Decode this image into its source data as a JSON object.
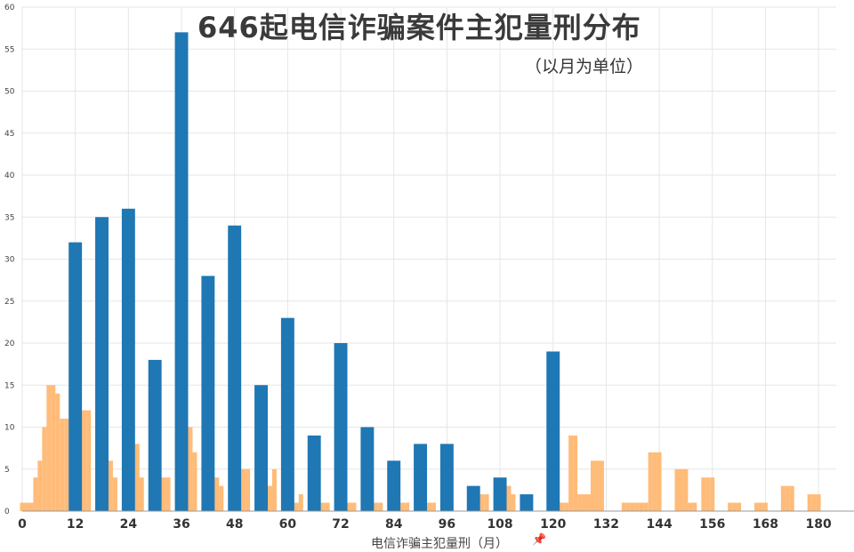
{
  "chart_data": {
    "type": "bar",
    "title": "646起电信诈骗案件主犯量刑分布",
    "subtitle": "（以月为单位）",
    "xlabel": "电信诈骗主犯量刑（月）",
    "ylabel": "",
    "pin_icon": "pin-icon",
    "grid": true,
    "xlim": [
      0,
      184
    ],
    "ylim": [
      0,
      60
    ],
    "x_ticks": [
      "0",
      "12",
      "24",
      "36",
      "48",
      "60",
      "72",
      "84",
      "96",
      "108",
      "120",
      "132",
      "144",
      "156",
      "168",
      "180"
    ],
    "y_ticks": [
      "0",
      "5",
      "10",
      "15",
      "20",
      "25",
      "30",
      "35",
      "40",
      "45",
      "50",
      "55",
      "60"
    ],
    "colors": {
      "blue": "#1f77b4",
      "orange": "#ffbb78",
      "grid": "#e6e6e6",
      "axis": "#999999"
    },
    "series": [
      {
        "values": [
          {
            "x": 12,
            "y": 32
          },
          {
            "x": 18,
            "y": 35
          },
          {
            "x": 24,
            "y": 36
          },
          {
            "x": 30,
            "y": 18
          },
          {
            "x": 36,
            "y": 57
          },
          {
            "x": 42,
            "y": 28
          },
          {
            "x": 48,
            "y": 34
          },
          {
            "x": 54,
            "y": 15
          },
          {
            "x": 60,
            "y": 23
          },
          {
            "x": 66,
            "y": 9
          },
          {
            "x": 72,
            "y": 20
          },
          {
            "x": 78,
            "y": 10
          },
          {
            "x": 84,
            "y": 6
          },
          {
            "x": 90,
            "y": 8
          },
          {
            "x": 96,
            "y": 8
          },
          {
            "x": 102,
            "y": 3
          },
          {
            "x": 108,
            "y": 4
          },
          {
            "x": 114,
            "y": 2
          },
          {
            "x": 120,
            "y": 19
          }
        ]
      },
      {
        "values": [
          {
            "x": 0,
            "y": 1
          },
          {
            "x": 1,
            "y": 1
          },
          {
            "x": 2,
            "y": 1
          },
          {
            "x": 3,
            "y": 4
          },
          {
            "x": 4,
            "y": 6
          },
          {
            "x": 5,
            "y": 10
          },
          {
            "x": 6,
            "y": 15
          },
          {
            "x": 7,
            "y": 15
          },
          {
            "x": 8,
            "y": 14
          },
          {
            "x": 9,
            "y": 11
          },
          {
            "x": 10,
            "y": 11
          },
          {
            "x": 13,
            "y": 11
          },
          {
            "x": 14,
            "y": 12
          },
          {
            "x": 15,
            "y": 12
          },
          {
            "x": 19,
            "y": 6
          },
          {
            "x": 20,
            "y": 6
          },
          {
            "x": 21,
            "y": 4
          },
          {
            "x": 25,
            "y": 8
          },
          {
            "x": 26,
            "y": 8
          },
          {
            "x": 27,
            "y": 4
          },
          {
            "x": 31,
            "y": 4
          },
          {
            "x": 32,
            "y": 4
          },
          {
            "x": 33,
            "y": 4
          },
          {
            "x": 37,
            "y": 10
          },
          {
            "x": 38,
            "y": 10
          },
          {
            "x": 39,
            "y": 7
          },
          {
            "x": 43,
            "y": 4
          },
          {
            "x": 44,
            "y": 4
          },
          {
            "x": 45,
            "y": 3
          },
          {
            "x": 49,
            "y": 5
          },
          {
            "x": 50,
            "y": 5
          },
          {
            "x": 51,
            "y": 5
          },
          {
            "x": 55,
            "y": 3
          },
          {
            "x": 56,
            "y": 3
          },
          {
            "x": 57,
            "y": 5
          },
          {
            "x": 61,
            "y": 1
          },
          {
            "x": 62,
            "y": 1
          },
          {
            "x": 63,
            "y": 2
          },
          {
            "x": 67,
            "y": 1
          },
          {
            "x": 68,
            "y": 1
          },
          {
            "x": 69,
            "y": 1
          },
          {
            "x": 73,
            "y": 1
          },
          {
            "x": 74,
            "y": 1
          },
          {
            "x": 75,
            "y": 1
          },
          {
            "x": 79,
            "y": 1
          },
          {
            "x": 80,
            "y": 1
          },
          {
            "x": 81,
            "y": 1
          },
          {
            "x": 85,
            "y": 1
          },
          {
            "x": 86,
            "y": 1
          },
          {
            "x": 87,
            "y": 1
          },
          {
            "x": 91,
            "y": 1
          },
          {
            "x": 92,
            "y": 1
          },
          {
            "x": 93,
            "y": 1
          },
          {
            "x": 103,
            "y": 2
          },
          {
            "x": 104,
            "y": 2
          },
          {
            "x": 105,
            "y": 2
          },
          {
            "x": 109,
            "y": 3
          },
          {
            "x": 110,
            "y": 3
          },
          {
            "x": 111,
            "y": 2
          },
          {
            "x": 121,
            "y": 1
          },
          {
            "x": 122,
            "y": 1
          },
          {
            "x": 123,
            "y": 1
          },
          {
            "x": 124,
            "y": 9
          },
          {
            "x": 125,
            "y": 9
          },
          {
            "x": 126,
            "y": 2
          },
          {
            "x": 127,
            "y": 2
          },
          {
            "x": 128,
            "y": 2
          },
          {
            "x": 129,
            "y": 6
          },
          {
            "x": 130,
            "y": 6
          },
          {
            "x": 131,
            "y": 6
          },
          {
            "x": 136,
            "y": 1
          },
          {
            "x": 137,
            "y": 1
          },
          {
            "x": 138,
            "y": 1
          },
          {
            "x": 139,
            "y": 1
          },
          {
            "x": 140,
            "y": 1
          },
          {
            "x": 141,
            "y": 1
          },
          {
            "x": 142,
            "y": 7
          },
          {
            "x": 143,
            "y": 7
          },
          {
            "x": 144,
            "y": 7
          },
          {
            "x": 148,
            "y": 5
          },
          {
            "x": 149,
            "y": 5
          },
          {
            "x": 150,
            "y": 5
          },
          {
            "x": 151,
            "y": 1
          },
          {
            "x": 152,
            "y": 1
          },
          {
            "x": 154,
            "y": 4
          },
          {
            "x": 155,
            "y": 4
          },
          {
            "x": 156,
            "y": 4
          },
          {
            "x": 160,
            "y": 1
          },
          {
            "x": 161,
            "y": 1
          },
          {
            "x": 162,
            "y": 1
          },
          {
            "x": 166,
            "y": 1
          },
          {
            "x": 167,
            "y": 1
          },
          {
            "x": 168,
            "y": 1
          },
          {
            "x": 172,
            "y": 3
          },
          {
            "x": 173,
            "y": 3
          },
          {
            "x": 174,
            "y": 3
          },
          {
            "x": 178,
            "y": 2
          },
          {
            "x": 179,
            "y": 2
          },
          {
            "x": 180,
            "y": 2
          }
        ]
      }
    ]
  }
}
